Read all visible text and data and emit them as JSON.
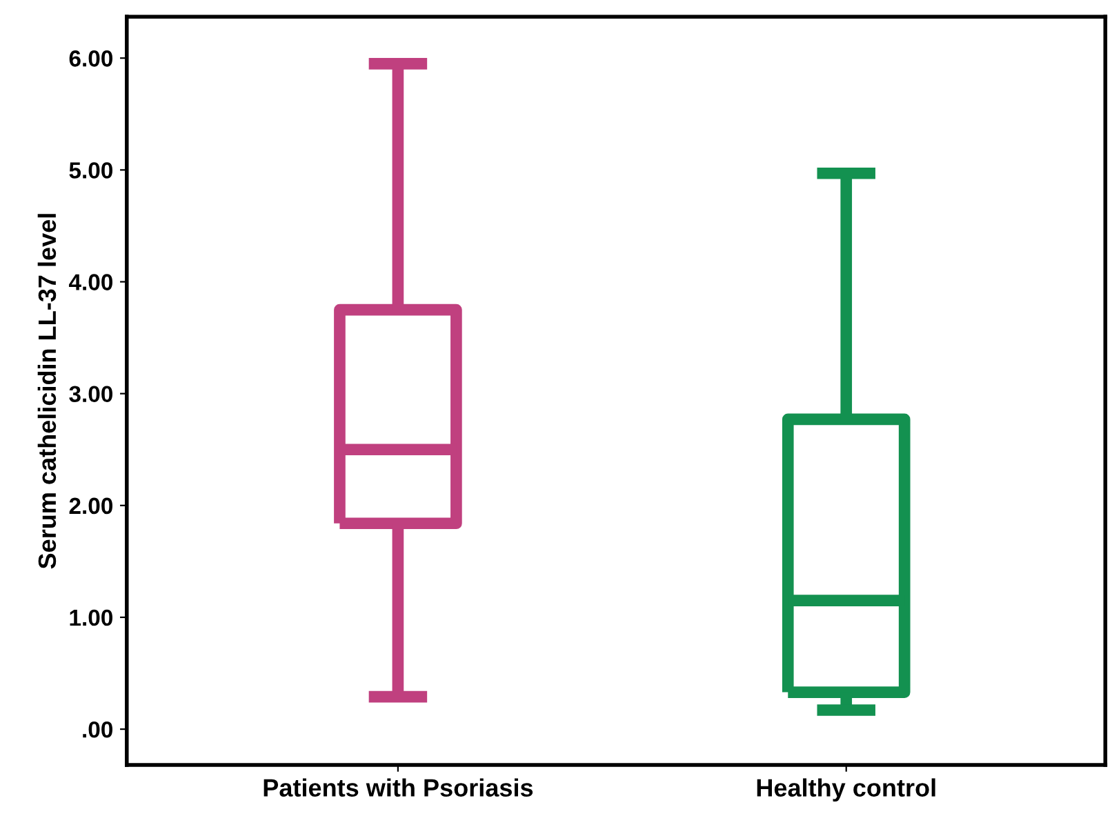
{
  "chart_data": {
    "type": "box",
    "ylabel": "Serum cathelicidin LL-37 level",
    "categories": [
      "Patients with Psoriasis",
      "Healthy control"
    ],
    "colors": [
      "#c0407f",
      "#139150"
    ],
    "boxes": [
      {
        "low": 0.29,
        "q1": 1.84,
        "median": 2.5,
        "q3": 3.75,
        "high": 5.95
      },
      {
        "low": 0.17,
        "q1": 0.33,
        "median": 1.15,
        "q3": 2.77,
        "high": 4.97
      }
    ],
    "ylim": [
      -0.32,
      6.37
    ],
    "yticks": [
      {
        "value": 0,
        "label": ".00"
      },
      {
        "value": 1,
        "label": "1.00"
      },
      {
        "value": 2,
        "label": "2.00"
      },
      {
        "value": 3,
        "label": "3.00"
      },
      {
        "value": 4,
        "label": "4.00"
      },
      {
        "value": 5,
        "label": "5.00"
      },
      {
        "value": 6,
        "label": "6.00"
      }
    ],
    "grid": false
  }
}
